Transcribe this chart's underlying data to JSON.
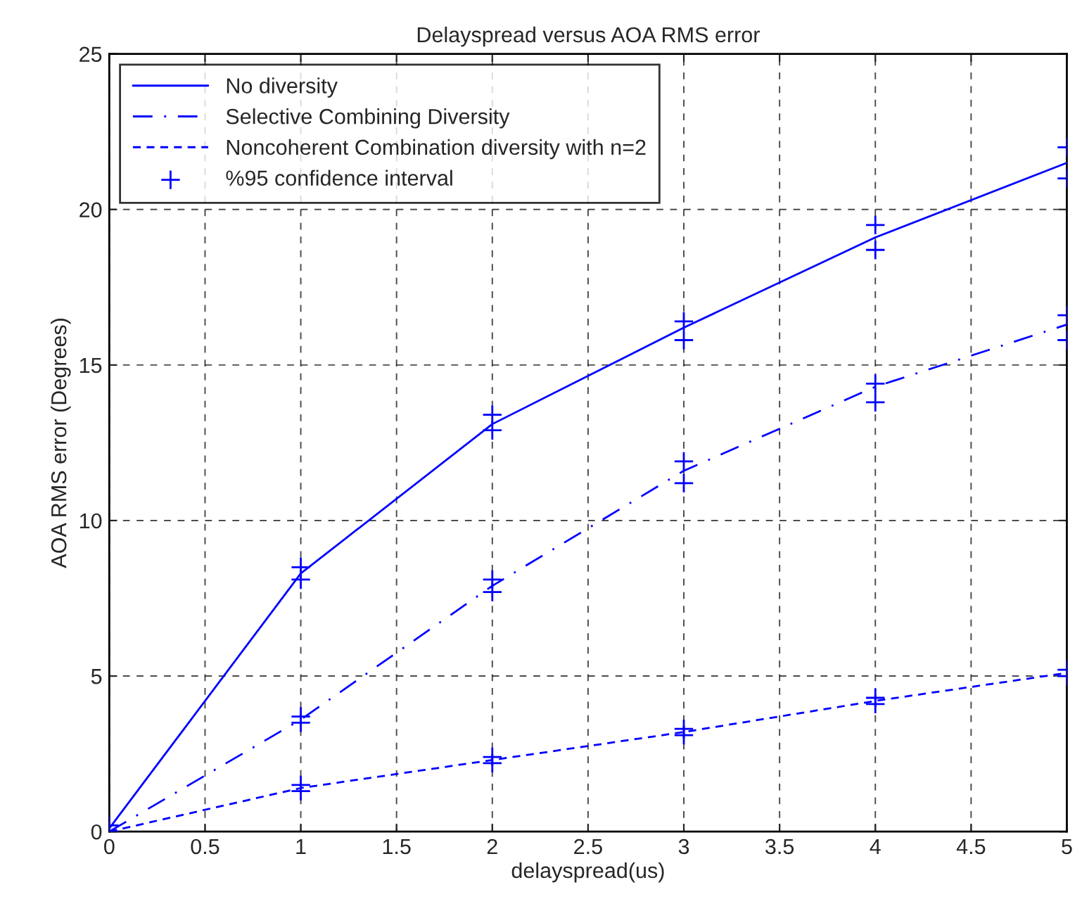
{
  "chart_data": {
    "type": "line",
    "title": "Delayspread versus AOA RMS error",
    "xlabel": "delayspread(us)",
    "ylabel": "AOA RMS error (Degrees)",
    "x": [
      0,
      1,
      2,
      3,
      4,
      5
    ],
    "series": [
      {
        "name": "No diversity",
        "color": "#0000ff",
        "line_style": "solid",
        "marker": "none",
        "values": [
          0.1,
          8.3,
          13.1,
          16.2,
          19.1,
          21.5
        ]
      },
      {
        "name": "Selective Combining Diversity",
        "color": "#0000ff",
        "line_style": "dashdot",
        "marker": "none",
        "values": [
          0.0,
          3.6,
          7.9,
          11.6,
          14.3,
          16.3
        ]
      },
      {
        "name": "Noncoherent Combination diversity with n=2",
        "color": "#0000ff",
        "line_style": "dashed",
        "marker": "none",
        "values": [
          0.0,
          1.4,
          2.3,
          3.2,
          4.2,
          5.1
        ]
      },
      {
        "name": "%95 confidence interval",
        "type": "scatter",
        "color": "#0000ff",
        "marker": "cross",
        "x": [
          0,
          0,
          1,
          1,
          2,
          2,
          3,
          3,
          4,
          4,
          5,
          5,
          1,
          1,
          2,
          2,
          3,
          3,
          4,
          4,
          5,
          5,
          1,
          1,
          2,
          2,
          3,
          3,
          4,
          4,
          5,
          5
        ],
        "values": [
          0.2,
          0.0,
          8.5,
          8.1,
          13.4,
          12.9,
          16.4,
          15.8,
          19.5,
          18.7,
          22.0,
          21.0,
          3.7,
          3.5,
          8.1,
          7.7,
          11.9,
          11.2,
          14.4,
          13.8,
          16.6,
          15.8,
          1.5,
          1.3,
          2.4,
          2.2,
          3.3,
          3.1,
          4.3,
          4.1,
          5.2,
          5.0
        ]
      }
    ],
    "xlim": [
      0,
      5
    ],
    "xticks": [
      0,
      0.5,
      1,
      1.5,
      2,
      2.5,
      3,
      3.5,
      4,
      4.5,
      5
    ],
    "ylim": [
      0,
      25
    ],
    "yticks": [
      0,
      5,
      10,
      15,
      20,
      25
    ],
    "grid": true,
    "legend": "top left"
  }
}
